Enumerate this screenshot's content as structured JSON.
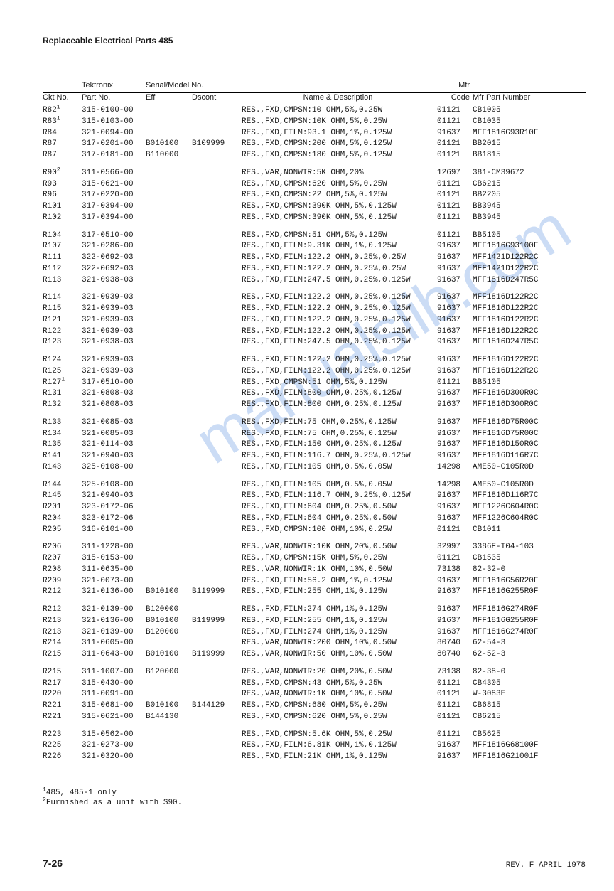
{
  "header": "Replaceable Electrical Parts 485",
  "columns": {
    "ckt": "Ckt No.",
    "part_pre": "Tektronix",
    "part": "Part No.",
    "serial_pre": "Serial/Model No.",
    "eff": "Eff",
    "dscont": "Dscont",
    "name": "Name & Description",
    "mfr_pre": "Mfr",
    "mfr": "Code",
    "mpn": "Mfr Part Number"
  },
  "footnotes": [
    "485, 485-1 only",
    "Furnished as a unit with S90."
  ],
  "page_number": "7-26",
  "revision": "REV. F APRIL 1978",
  "watermark": "manualslib.com",
  "rows": [
    {
      "gap": false,
      "ckt": "R82",
      "sup": "1",
      "part": "315-0100-00",
      "eff": "",
      "dsc": "",
      "name": "RES.,FXD,CMPSN:10 OHM,5%,0.25W",
      "mfr": "01121",
      "mpn": "CB1005"
    },
    {
      "gap": false,
      "ckt": "R83",
      "sup": "1",
      "part": "315-0103-00",
      "eff": "",
      "dsc": "",
      "name": "RES.,FXD,CMPSN:10K OHM,5%,0.25W",
      "mfr": "01121",
      "mpn": "CB1035"
    },
    {
      "gap": false,
      "ckt": "R84",
      "sup": "",
      "part": "321-0094-00",
      "eff": "",
      "dsc": "",
      "name": "RES.,FXD,FILM:93.1 OHM,1%,0.125W",
      "mfr": "91637",
      "mpn": "MFF1816G93R10F"
    },
    {
      "gap": false,
      "ckt": "R87",
      "sup": "",
      "part": "317-0201-00",
      "eff": "B010100",
      "dsc": "B109999",
      "name": "RES.,FXD,CMPSN:200 OHM,5%,0.125W",
      "mfr": "01121",
      "mpn": "BB2015"
    },
    {
      "gap": false,
      "ckt": "R87",
      "sup": "",
      "part": "317-0181-00",
      "eff": "B110000",
      "dsc": "",
      "name": "RES.,FXD,CMPSN:180 OHM,5%,0.125W",
      "mfr": "01121",
      "mpn": "BB1815"
    },
    {
      "gap": true,
      "ckt": "R90",
      "sup": "2",
      "part": "311-0566-00",
      "eff": "",
      "dsc": "",
      "name": "RES.,VAR,NONWIR:5K OHM,20%",
      "mfr": "12697",
      "mpn": "381-CM39672"
    },
    {
      "gap": false,
      "ckt": "R93",
      "sup": "",
      "part": "315-0621-00",
      "eff": "",
      "dsc": "",
      "name": "RES.,FXD,CMPSN:620 OHM,5%,0.25W",
      "mfr": "01121",
      "mpn": "CB6215"
    },
    {
      "gap": false,
      "ckt": "R96",
      "sup": "",
      "part": "317-0220-00",
      "eff": "",
      "dsc": "",
      "name": "RES.,FXD,CMPSN:22 OHM,5%,0.125W",
      "mfr": "01121",
      "mpn": "BB2205"
    },
    {
      "gap": false,
      "ckt": "R101",
      "sup": "",
      "part": "317-0394-00",
      "eff": "",
      "dsc": "",
      "name": "RES.,FXD,CMPSN:390K OHM,5%,0.125W",
      "mfr": "01121",
      "mpn": "BB3945"
    },
    {
      "gap": false,
      "ckt": "R102",
      "sup": "",
      "part": "317-0394-00",
      "eff": "",
      "dsc": "",
      "name": "RES.,FXD,CMPSN:390K OHM,5%,0.125W",
      "mfr": "01121",
      "mpn": "BB3945"
    },
    {
      "gap": true,
      "ckt": "R104",
      "sup": "",
      "part": "317-0510-00",
      "eff": "",
      "dsc": "",
      "name": "RES.,FXD,CMPSN:51 OHM,5%,0.125W",
      "mfr": "01121",
      "mpn": "BB5105"
    },
    {
      "gap": false,
      "ckt": "R107",
      "sup": "",
      "part": "321-0286-00",
      "eff": "",
      "dsc": "",
      "name": "RES.,FXD,FILM:9.31K OHM,1%,0.125W",
      "mfr": "91637",
      "mpn": "MFF1816G93100F"
    },
    {
      "gap": false,
      "ckt": "R111",
      "sup": "",
      "part": "322-0692-03",
      "eff": "",
      "dsc": "",
      "name": "RES.,FXD,FILM:122.2 OHM,0.25%,0.25W",
      "mfr": "91637",
      "mpn": "MFF1421D122R2C"
    },
    {
      "gap": false,
      "ckt": "R112",
      "sup": "",
      "part": "322-0692-03",
      "eff": "",
      "dsc": "",
      "name": "RES.,FXD,FILM:122.2 OHM,0.25%,0.25W",
      "mfr": "91637",
      "mpn": "MFF1421D122R2C"
    },
    {
      "gap": false,
      "ckt": "R113",
      "sup": "",
      "part": "321-0938-03",
      "eff": "",
      "dsc": "",
      "name": "RES.,FXD,FILM:247.5 OHM,0.25%,0.125W",
      "mfr": "91637",
      "mpn": "MFF1816D247R5C"
    },
    {
      "gap": true,
      "ckt": "R114",
      "sup": "",
      "part": "321-0939-03",
      "eff": "",
      "dsc": "",
      "name": "RES.,FXD,FILM:122.2 OHM,0.25%,0.125W",
      "mfr": "91637",
      "mpn": "MFF1816D122R2C"
    },
    {
      "gap": false,
      "ckt": "R115",
      "sup": "",
      "part": "321-0939-03",
      "eff": "",
      "dsc": "",
      "name": "RES.,FXD,FILM:122.2 OHM,0.25%,0.125W",
      "mfr": "91637",
      "mpn": "MFF1816D122R2C"
    },
    {
      "gap": false,
      "ckt": "R121",
      "sup": "",
      "part": "321-0939-03",
      "eff": "",
      "dsc": "",
      "name": "RES.,FXD,FILM:122.2 OHM,0.25%,0.125W",
      "mfr": "91637",
      "mpn": "MFF1816D122R2C"
    },
    {
      "gap": false,
      "ckt": "R122",
      "sup": "",
      "part": "321-0939-03",
      "eff": "",
      "dsc": "",
      "name": "RES.,FXD,FILM:122.2 OHM,0.25%,0.125W",
      "mfr": "91637",
      "mpn": "MFF1816D122R2C"
    },
    {
      "gap": false,
      "ckt": "R123",
      "sup": "",
      "part": "321-0938-03",
      "eff": "",
      "dsc": "",
      "name": "RES.,FXD,FILM:247.5 OHM,0.25%,0.125W",
      "mfr": "91637",
      "mpn": "MFF1816D247R5C"
    },
    {
      "gap": true,
      "ckt": "R124",
      "sup": "",
      "part": "321-0939-03",
      "eff": "",
      "dsc": "",
      "name": "RES.,FXD,FILM:122.2 OHM,0.25%,0.125W",
      "mfr": "91637",
      "mpn": "MFF1816D122R2C"
    },
    {
      "gap": false,
      "ckt": "R125",
      "sup": "",
      "part": "321-0939-03",
      "eff": "",
      "dsc": "",
      "name": "RES.,FXD,FILM:122.2 OHM,0.25%,0.125W",
      "mfr": "91637",
      "mpn": "MFF1816D122R2C"
    },
    {
      "gap": false,
      "ckt": "R127",
      "sup": "1",
      "part": "317-0510-00",
      "eff": "",
      "dsc": "",
      "name": "RES.,FXD,CMPSN:51 OHM,5%,0.125W",
      "mfr": "01121",
      "mpn": "BB5105"
    },
    {
      "gap": false,
      "ckt": "R131",
      "sup": "",
      "part": "321-0808-03",
      "eff": "",
      "dsc": "",
      "name": "RES.,FXD,FILM:800 OHM,0.25%,0.125W",
      "mfr": "91637",
      "mpn": "MFF1816D300R0C"
    },
    {
      "gap": false,
      "ckt": "R132",
      "sup": "",
      "part": "321-0808-03",
      "eff": "",
      "dsc": "",
      "name": "RES.,FXD,FILM:800 OHM,0.25%,0.125W",
      "mfr": "91637",
      "mpn": "MFF1816D300R0C"
    },
    {
      "gap": true,
      "ckt": "R133",
      "sup": "",
      "part": "321-0085-03",
      "eff": "",
      "dsc": "",
      "name": "RES.,FXD,FILM:75 OHM,0.25%,0.125W",
      "mfr": "91637",
      "mpn": "MFF1816D75R00C"
    },
    {
      "gap": false,
      "ckt": "R134",
      "sup": "",
      "part": "321-0085-03",
      "eff": "",
      "dsc": "",
      "name": "RES.,FXD,FILM:75 OHM,0.25%,0.125W",
      "mfr": "91637",
      "mpn": "MFF1816D75R00C"
    },
    {
      "gap": false,
      "ckt": "R135",
      "sup": "",
      "part": "321-0114-03",
      "eff": "",
      "dsc": "",
      "name": "RES.,FXD,FILM:150 OHM,0.25%,0.125W",
      "mfr": "91637",
      "mpn": "MFF1816D150R0C"
    },
    {
      "gap": false,
      "ckt": "R141",
      "sup": "",
      "part": "321-0940-03",
      "eff": "",
      "dsc": "",
      "name": "RES.,FXD,FILM:116.7 OHM,0.25%,0.125W",
      "mfr": "91637",
      "mpn": "MFF1816D116R7C"
    },
    {
      "gap": false,
      "ckt": "R143",
      "sup": "",
      "part": "325-0108-00",
      "eff": "",
      "dsc": "",
      "name": "RES.,FXD,FILM:105 OHM,0.5%,0.05W",
      "mfr": "14298",
      "mpn": "AME50-C105R0D"
    },
    {
      "gap": true,
      "ckt": "R144",
      "sup": "",
      "part": "325-0108-00",
      "eff": "",
      "dsc": "",
      "name": "RES.,FXD,FILM:105 OHM,0.5%,0.05W",
      "mfr": "14298",
      "mpn": "AME50-C105R0D"
    },
    {
      "gap": false,
      "ckt": "R145",
      "sup": "",
      "part": "321-0940-03",
      "eff": "",
      "dsc": "",
      "name": "RES.,FXD,FILM:116.7 OHM,0.25%,0.125W",
      "mfr": "91637",
      "mpn": "MFF1816D116R7C"
    },
    {
      "gap": false,
      "ckt": "R201",
      "sup": "",
      "part": "323-0172-06",
      "eff": "",
      "dsc": "",
      "name": "RES.,FXD,FILM:604 OHM,0.25%,0.50W",
      "mfr": "91637",
      "mpn": "MFF1226C604R0C"
    },
    {
      "gap": false,
      "ckt": "R204",
      "sup": "",
      "part": "323-0172-06",
      "eff": "",
      "dsc": "",
      "name": "RES.,FXD,FILM:604 OHM,0.25%,0.50W",
      "mfr": "91637",
      "mpn": "MFF1226C604R0C"
    },
    {
      "gap": false,
      "ckt": "R205",
      "sup": "",
      "part": "316-0101-00",
      "eff": "",
      "dsc": "",
      "name": "RES.,FXD,CMPSN:100 OHM,10%,0.25W",
      "mfr": "01121",
      "mpn": "CB1011"
    },
    {
      "gap": true,
      "ckt": "R206",
      "sup": "",
      "part": "311-1228-00",
      "eff": "",
      "dsc": "",
      "name": "RES.,VAR,NONWIR:10K OHM,20%,0.50W",
      "mfr": "32997",
      "mpn": "3386F-T04-103"
    },
    {
      "gap": false,
      "ckt": "R207",
      "sup": "",
      "part": "315-0153-00",
      "eff": "",
      "dsc": "",
      "name": "RES.,FXD,CMPSN:15K OHM,5%,0.25W",
      "mfr": "01121",
      "mpn": "CB1535"
    },
    {
      "gap": false,
      "ckt": "R208",
      "sup": "",
      "part": "311-0635-00",
      "eff": "",
      "dsc": "",
      "name": "RES.,VAR,NONWIR:1K OHM,10%,0.50W",
      "mfr": "73138",
      "mpn": "82-32-0"
    },
    {
      "gap": false,
      "ckt": "R209",
      "sup": "",
      "part": "321-0073-00",
      "eff": "",
      "dsc": "",
      "name": "RES.,FXD,FILM:56.2 OHM,1%,0.125W",
      "mfr": "91637",
      "mpn": "MFF1816G56R20F"
    },
    {
      "gap": false,
      "ckt": "R212",
      "sup": "",
      "part": "321-0136-00",
      "eff": "B010100",
      "dsc": "B119999",
      "name": "RES.,FXD,FILM:255 OHM,1%,0.125W",
      "mfr": "91637",
      "mpn": "MFF1816G255R0F"
    },
    {
      "gap": true,
      "ckt": "R212",
      "sup": "",
      "part": "321-0139-00",
      "eff": "B120000",
      "dsc": "",
      "name": "RES.,FXD,FILM:274 OHM,1%,0.125W",
      "mfr": "91637",
      "mpn": "MFF1816G274R0F"
    },
    {
      "gap": false,
      "ckt": "R213",
      "sup": "",
      "part": "321-0136-00",
      "eff": "B010100",
      "dsc": "B119999",
      "name": "RES.,FXD,FILM:255 OHM,1%,0.125W",
      "mfr": "91637",
      "mpn": "MFF1816G255R0F"
    },
    {
      "gap": false,
      "ckt": "R213",
      "sup": "",
      "part": "321-0139-00",
      "eff": "B120000",
      "dsc": "",
      "name": "RES.,FXD,FILM:274 OHM,1%,0.125W",
      "mfr": "91637",
      "mpn": "MFF1816G274R0F"
    },
    {
      "gap": false,
      "ckt": "R214",
      "sup": "",
      "part": "311-0605-00",
      "eff": "",
      "dsc": "",
      "name": "RES.,VAR,NONWIR:200 OHM,10%,0.50W",
      "mfr": "80740",
      "mpn": "62-54-3"
    },
    {
      "gap": false,
      "ckt": "R215",
      "sup": "",
      "part": "311-0643-00",
      "eff": "B010100",
      "dsc": "B119999",
      "name": "RES.,VAR,NONWIR:50 OHM,10%,0.50W",
      "mfr": "80740",
      "mpn": "62-52-3"
    },
    {
      "gap": true,
      "ckt": "R215",
      "sup": "",
      "part": "311-1007-00",
      "eff": "B120000",
      "dsc": "",
      "name": "RES.,VAR,NONWIR:20 OHM,20%,0.50W",
      "mfr": "73138",
      "mpn": "82-38-0"
    },
    {
      "gap": false,
      "ckt": "R217",
      "sup": "",
      "part": "315-0430-00",
      "eff": "",
      "dsc": "",
      "name": "RES.,FXD,CMPSN:43 OHM,5%,0.25W",
      "mfr": "01121",
      "mpn": "CB4305"
    },
    {
      "gap": false,
      "ckt": "R220",
      "sup": "",
      "part": "311-0091-00",
      "eff": "",
      "dsc": "",
      "name": "RES.,VAR,NONWIR:1K OHM,10%,0.50W",
      "mfr": "01121",
      "mpn": "W-3083E"
    },
    {
      "gap": false,
      "ckt": "R221",
      "sup": "",
      "part": "315-0681-00",
      "eff": "B010100",
      "dsc": "B144129",
      "name": "RES.,FXD,CMPSN:680 OHM,5%,0.25W",
      "mfr": "01121",
      "mpn": "CB6815"
    },
    {
      "gap": false,
      "ckt": "R221",
      "sup": "",
      "part": "315-0621-00",
      "eff": "B144130",
      "dsc": "",
      "name": "RES.,FXD,CMPSN:620 OHM,5%,0.25W",
      "mfr": "01121",
      "mpn": "CB6215"
    },
    {
      "gap": true,
      "ckt": "R223",
      "sup": "",
      "part": "315-0562-00",
      "eff": "",
      "dsc": "",
      "name": "RES.,FXD,CMPSN:5.6K OHM,5%,0.25W",
      "mfr": "01121",
      "mpn": "CB5625"
    },
    {
      "gap": false,
      "ckt": "R225",
      "sup": "",
      "part": "321-0273-00",
      "eff": "",
      "dsc": "",
      "name": "RES.,FXD,FILM:6.81K OHM,1%,0.125W",
      "mfr": "91637",
      "mpn": "MFF1816G68100F"
    },
    {
      "gap": false,
      "ckt": "R226",
      "sup": "",
      "part": "321-0320-00",
      "eff": "",
      "dsc": "",
      "name": "RES.,FXD,FILM:21K OHM,1%,0.125W",
      "mfr": "91637",
      "mpn": "MFF1816G21001F"
    }
  ]
}
